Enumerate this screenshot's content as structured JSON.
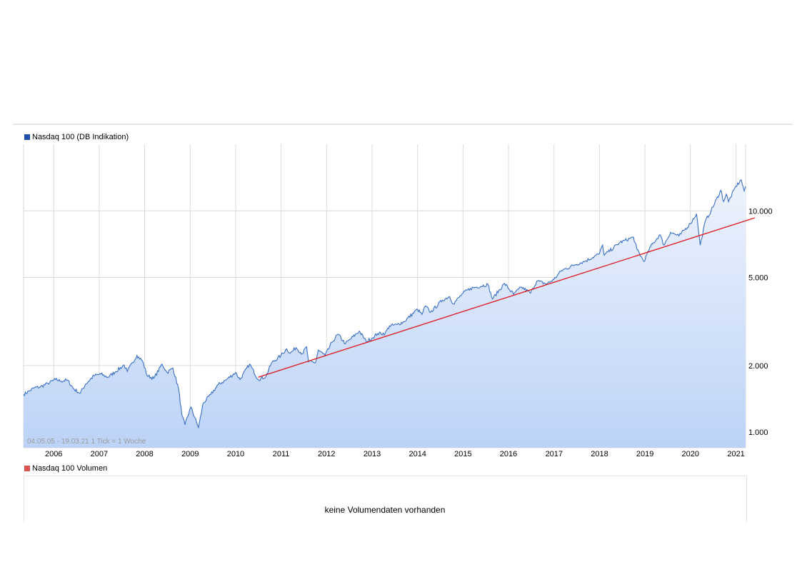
{
  "chart_data": {
    "type": "area",
    "series": [
      {
        "name": "Nasdaq 100 (DB Indikation)",
        "color": "#3a6fc4",
        "points": [
          [
            "2005-05-04",
            1480
          ],
          [
            "2005-06-15",
            1530
          ],
          [
            "2005-08-01",
            1590
          ],
          [
            "2005-09-15",
            1600
          ],
          [
            "2005-11-15",
            1660
          ],
          [
            "2006-01-15",
            1730
          ],
          [
            "2006-03-01",
            1700
          ],
          [
            "2006-04-20",
            1720
          ],
          [
            "2006-06-15",
            1560
          ],
          [
            "2006-08-01",
            1500
          ],
          [
            "2006-09-15",
            1650
          ],
          [
            "2006-11-20",
            1800
          ],
          [
            "2007-01-15",
            1830
          ],
          [
            "2007-03-10",
            1770
          ],
          [
            "2007-05-15",
            1880
          ],
          [
            "2007-07-20",
            2010
          ],
          [
            "2007-08-15",
            1880
          ],
          [
            "2007-10-31",
            2220
          ],
          [
            "2007-12-15",
            2100
          ],
          [
            "2008-01-22",
            1800
          ],
          [
            "2008-03-15",
            1750
          ],
          [
            "2008-05-20",
            2030
          ],
          [
            "2008-06-30",
            1860
          ],
          [
            "2008-08-15",
            1950
          ],
          [
            "2008-09-30",
            1570
          ],
          [
            "2008-10-27",
            1190
          ],
          [
            "2008-11-20",
            1080
          ],
          [
            "2009-01-06",
            1300
          ],
          [
            "2009-03-09",
            1050
          ],
          [
            "2009-04-15",
            1350
          ],
          [
            "2009-06-15",
            1480
          ],
          [
            "2009-08-15",
            1640
          ],
          [
            "2009-10-15",
            1720
          ],
          [
            "2009-12-31",
            1860
          ],
          [
            "2010-02-05",
            1730
          ],
          [
            "2010-04-23",
            2030
          ],
          [
            "2010-07-01",
            1730
          ],
          [
            "2010-08-31",
            1780
          ],
          [
            "2010-10-15",
            2050
          ],
          [
            "2010-12-31",
            2220
          ],
          [
            "2011-02-15",
            2380
          ],
          [
            "2011-03-15",
            2270
          ],
          [
            "2011-05-01",
            2410
          ],
          [
            "2011-06-20",
            2260
          ],
          [
            "2011-07-25",
            2430
          ],
          [
            "2011-08-10",
            2080
          ],
          [
            "2011-10-04",
            2060
          ],
          [
            "2011-10-27",
            2350
          ],
          [
            "2011-12-20",
            2220
          ],
          [
            "2012-02-15",
            2550
          ],
          [
            "2012-04-01",
            2770
          ],
          [
            "2012-06-01",
            2510
          ],
          [
            "2012-09-20",
            2860
          ],
          [
            "2012-11-15",
            2570
          ],
          [
            "2012-12-31",
            2660
          ],
          [
            "2013-02-15",
            2790
          ],
          [
            "2013-04-15",
            2790
          ],
          [
            "2013-05-20",
            3020
          ],
          [
            "2013-07-20",
            3060
          ],
          [
            "2013-09-15",
            3160
          ],
          [
            "2013-12-31",
            3590
          ],
          [
            "2014-02-05",
            3400
          ],
          [
            "2014-03-05",
            3720
          ],
          [
            "2014-04-15",
            3480
          ],
          [
            "2014-07-20",
            3950
          ],
          [
            "2014-09-15",
            4100
          ],
          [
            "2014-10-15",
            3800
          ],
          [
            "2014-12-31",
            4240
          ],
          [
            "2015-03-01",
            4460
          ],
          [
            "2015-07-20",
            4650
          ],
          [
            "2015-08-25",
            4000
          ],
          [
            "2015-11-30",
            4700
          ],
          [
            "2016-02-10",
            4200
          ],
          [
            "2016-04-15",
            4520
          ],
          [
            "2016-06-27",
            4250
          ],
          [
            "2016-08-15",
            4820
          ],
          [
            "2016-11-03",
            4680
          ],
          [
            "2016-12-31",
            4900
          ],
          [
            "2017-03-01",
            5370
          ],
          [
            "2017-06-15",
            5700
          ],
          [
            "2017-09-15",
            5950
          ],
          [
            "2017-12-31",
            6400
          ],
          [
            "2018-01-26",
            7000
          ],
          [
            "2018-02-08",
            6300
          ],
          [
            "2018-06-15",
            7200
          ],
          [
            "2018-10-01",
            7600
          ],
          [
            "2018-10-29",
            6700
          ],
          [
            "2018-12-24",
            5900
          ],
          [
            "2019-02-15",
            6900
          ],
          [
            "2019-05-01",
            7800
          ],
          [
            "2019-06-03",
            7000
          ],
          [
            "2019-07-26",
            8000
          ],
          [
            "2019-10-01",
            7700
          ],
          [
            "2019-12-31",
            8750
          ],
          [
            "2020-02-19",
            9700
          ],
          [
            "2020-03-20",
            7000
          ],
          [
            "2020-04-30",
            9000
          ],
          [
            "2020-06-15",
            10000
          ],
          [
            "2020-09-02",
            12400
          ],
          [
            "2020-09-23",
            11000
          ],
          [
            "2020-10-15",
            11900
          ],
          [
            "2020-11-02",
            11000
          ],
          [
            "2020-12-31",
            12900
          ],
          [
            "2021-02-12",
            13800
          ],
          [
            "2021-03-08",
            12300
          ],
          [
            "2021-03-19",
            12900
          ]
        ]
      }
    ],
    "trendline": {
      "color": "#e0141c",
      "from": [
        "2010-07-01",
        1770
      ],
      "to": [
        "2021-06-01",
        9300
      ]
    },
    "y_scale": "log",
    "ylim": [
      850,
      20000
    ],
    "y_ticks": [
      {
        "value": 1000,
        "label": "1.000"
      },
      {
        "value": 2000,
        "label": "2.000"
      },
      {
        "value": 5000,
        "label": "5.000"
      },
      {
        "value": 10000,
        "label": "10.000"
      }
    ],
    "x_ticks": [
      {
        "date": "2006-01-01",
        "label": "2006"
      },
      {
        "date": "2007-01-01",
        "label": "2007"
      },
      {
        "date": "2008-01-01",
        "label": "2008"
      },
      {
        "date": "2009-01-01",
        "label": "2009"
      },
      {
        "date": "2010-01-01",
        "label": "2010"
      },
      {
        "date": "2011-01-01",
        "label": "2011"
      },
      {
        "date": "2012-01-01",
        "label": "2012"
      },
      {
        "date": "2013-01-01",
        "label": "2013"
      },
      {
        "date": "2014-01-01",
        "label": "2014"
      },
      {
        "date": "2015-01-01",
        "label": "2015"
      },
      {
        "date": "2016-01-01",
        "label": "2016"
      },
      {
        "date": "2017-01-01",
        "label": "2017"
      },
      {
        "date": "2018-01-01",
        "label": "2018"
      },
      {
        "date": "2019-01-01",
        "label": "2019"
      },
      {
        "date": "2020-01-01",
        "label": "2020"
      },
      {
        "date": "2021-01-01",
        "label": "2021"
      }
    ],
    "range_label": "04.05.05 - 19.03.21   1 Tick = 1 Woche",
    "grid": true,
    "fill_gradient": [
      "#eef3fd",
      "#bcd3f7"
    ]
  },
  "price_legend": {
    "label": "Nasdaq 100 (DB Indikation)",
    "color": "#1f4fa8"
  },
  "volume_legend": {
    "label": "Nasdaq 100 Volumen",
    "color": "#d9534f"
  },
  "volume_message": "keine Volumendaten vorhanden"
}
